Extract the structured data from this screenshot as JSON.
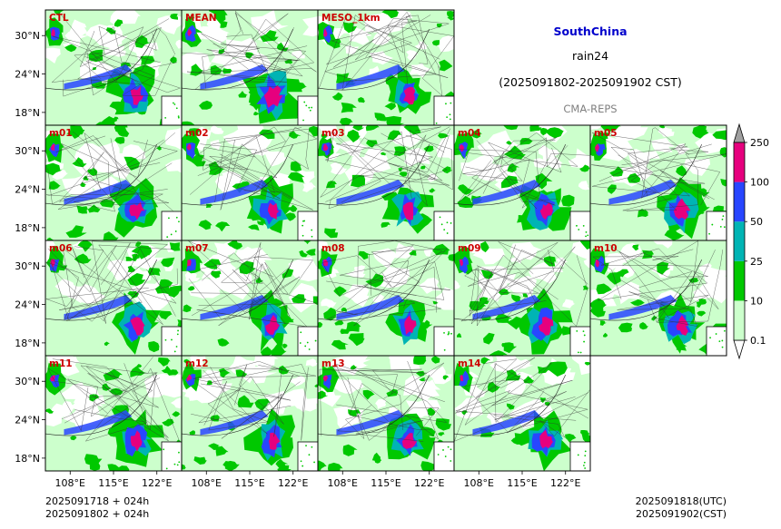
{
  "header": {
    "region": "SouthChina",
    "variable": "rain24",
    "period": "(2025091802-2025091902 CST)",
    "system": "CMA-REPS"
  },
  "colors": {
    "region_title": "#0000cc",
    "member_label": "#cc0000",
    "system_label": "#808080",
    "background_land": "#ffffff",
    "low_rain": "#ccffcc"
  },
  "chart_data": {
    "type": "heatmap",
    "grid": {
      "rows": 4,
      "cols": 5
    },
    "panels": [
      {
        "label": "CTL",
        "row": 0,
        "col": 0,
        "seed": 11,
        "intensity": 1.0
      },
      {
        "label": "MEAN",
        "row": 0,
        "col": 1,
        "seed": 23,
        "intensity": 1.25
      },
      {
        "label": "MESO_1km",
        "row": 0,
        "col": 2,
        "seed": 37,
        "intensity": 0.9
      },
      {
        "label": "m01",
        "row": 1,
        "col": 0,
        "seed": 41,
        "intensity": 1.0
      },
      {
        "label": "m02",
        "row": 1,
        "col": 1,
        "seed": 53,
        "intensity": 1.05
      },
      {
        "label": "m03",
        "row": 1,
        "col": 2,
        "seed": 67,
        "intensity": 0.95
      },
      {
        "label": "m04",
        "row": 1,
        "col": 3,
        "seed": 71,
        "intensity": 1.0
      },
      {
        "label": "m05",
        "row": 1,
        "col": 4,
        "seed": 83,
        "intensity": 1.1
      },
      {
        "label": "m06",
        "row": 2,
        "col": 0,
        "seed": 97,
        "intensity": 1.0
      },
      {
        "label": "m07",
        "row": 2,
        "col": 1,
        "seed": 101,
        "intensity": 1.0
      },
      {
        "label": "m08",
        "row": 2,
        "col": 2,
        "seed": 113,
        "intensity": 0.95
      },
      {
        "label": "m09",
        "row": 2,
        "col": 3,
        "seed": 127,
        "intensity": 1.05
      },
      {
        "label": "m10",
        "row": 2,
        "col": 4,
        "seed": 131,
        "intensity": 1.0
      },
      {
        "label": "m11",
        "row": 3,
        "col": 0,
        "seed": 149,
        "intensity": 1.0
      },
      {
        "label": "m12",
        "row": 3,
        "col": 1,
        "seed": 157,
        "intensity": 1.0
      },
      {
        "label": "m13",
        "row": 3,
        "col": 2,
        "seed": 163,
        "intensity": 0.95
      },
      {
        "label": "m14",
        "row": 3,
        "col": 3,
        "seed": 173,
        "intensity": 1.05
      }
    ],
    "lat_ticks": [
      "30°N",
      "24°N",
      "18°N"
    ],
    "lon_ticks": [
      "108°E",
      "115°E",
      "122°E"
    ],
    "lat_range": [
      16,
      34
    ],
    "lon_range": [
      104,
      126
    ],
    "colorbar": {
      "levels": [
        0.1,
        10,
        25,
        50,
        100,
        250
      ],
      "tick_labels": [
        "0.1",
        "10",
        "25",
        "50",
        "100",
        "250"
      ],
      "colors": [
        "#ccffcc",
        "#00c800",
        "#00b4b4",
        "#2846ff",
        "#e6007e"
      ],
      "extend_min_color": "#ffffff",
      "extend_max_color": "#a0a0a0"
    }
  },
  "footer": {
    "init_line": "2025091718  +  024h",
    "cst_line": "2025091802  +  024h",
    "valid_utc": "2025091818(UTC)",
    "valid_cst": "2025091902(CST)"
  }
}
